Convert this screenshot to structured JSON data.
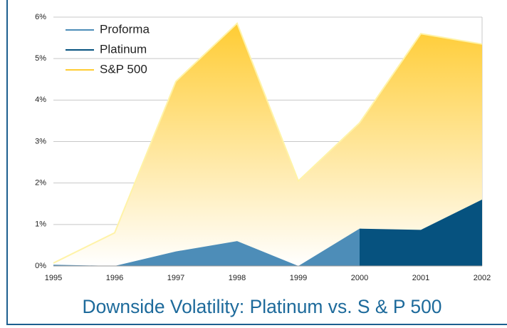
{
  "chart_data": {
    "type": "area",
    "title": "Downside Volatility: Platinum vs. S & P 500",
    "x": [
      1995,
      1996,
      1997,
      1998,
      1999,
      2000,
      2001,
      2002
    ],
    "xlim": [
      1995,
      2002
    ],
    "xticks": [
      1995,
      1996,
      1997,
      1998,
      1999,
      2000,
      2001,
      2002
    ],
    "ylim": [
      0,
      6
    ],
    "yticks": [
      {
        "value": 0,
        "label": "0%"
      },
      {
        "value": 1,
        "label": "1%"
      },
      {
        "value": 2,
        "label": "2%"
      },
      {
        "value": 3,
        "label": "3%"
      },
      {
        "value": 4,
        "label": "4%"
      },
      {
        "value": 5,
        "label": "5%"
      },
      {
        "value": 6,
        "label": "6%"
      }
    ],
    "grid": true,
    "legend": "top-left",
    "series": [
      {
        "name": "Proforma",
        "color": "#4d8db8",
        "values": [
          0.03,
          0,
          0.35,
          0.6,
          0,
          0.9,
          null,
          null
        ]
      },
      {
        "name": "Platinum",
        "color": "#06527f",
        "values": [
          null,
          null,
          null,
          null,
          null,
          0.9,
          0.87,
          1.6
        ]
      },
      {
        "name": "S&P 500",
        "color": "#ffcc33",
        "values": [
          0.07,
          0.8,
          4.45,
          5.85,
          2.05,
          3.45,
          5.6,
          5.35
        ]
      }
    ]
  }
}
